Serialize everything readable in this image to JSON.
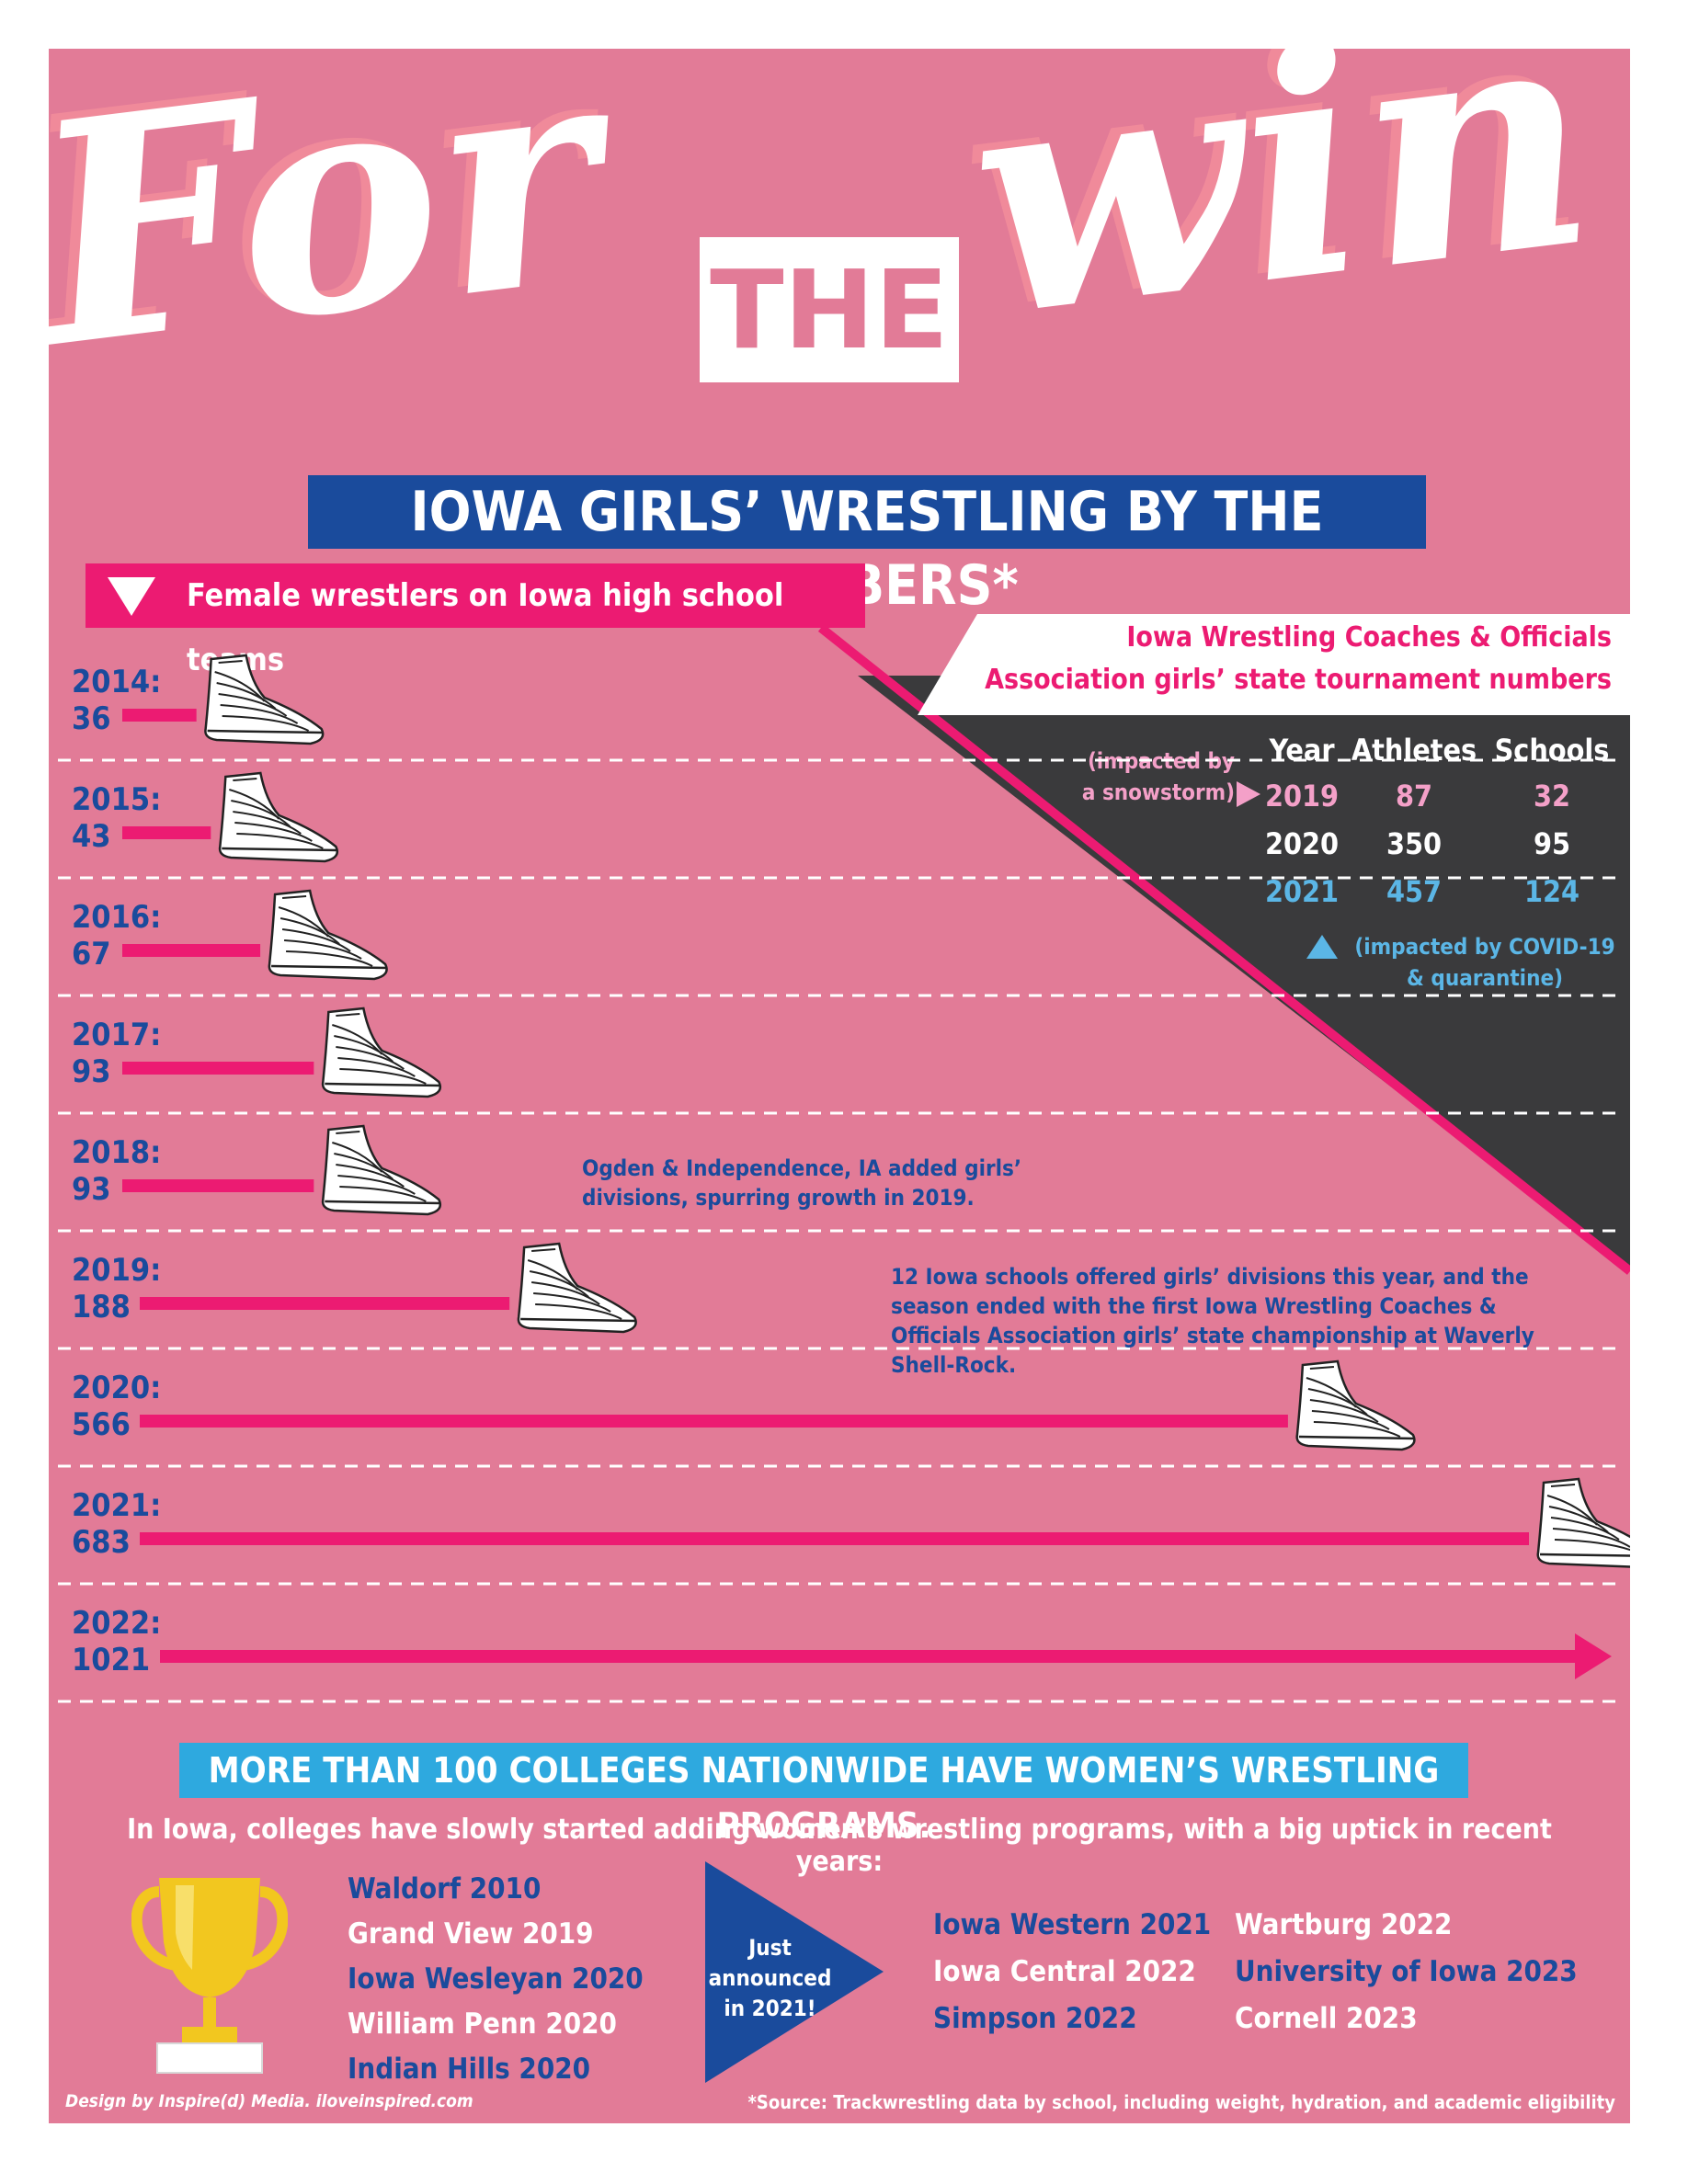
{
  "hero": {
    "word1": "For",
    "word2": "THE",
    "word3": "win"
  },
  "subtitle": "IOWA GIRLS’ WRESTLING BY THE NUMBERS*",
  "bar_header": "Female wrestlers on Iowa high school teams",
  "colors": {
    "background": "#e27b97",
    "pink": "#ec1b72",
    "navy": "#1a4b9c",
    "dark": "#3a3a3c",
    "light_blue": "#2ea9df",
    "white": "#ffffff"
  },
  "chart_data": {
    "type": "bar",
    "title": "Female wrestlers on Iowa high school teams",
    "categories": [
      "2014",
      "2015",
      "2016",
      "2017",
      "2018",
      "2019",
      "2020",
      "2021",
      "2022"
    ],
    "category_labels": [
      "2014:",
      "2015:",
      "2016:",
      "2017:",
      "2018:",
      "2019:",
      "2020:",
      "2021:",
      "2022:"
    ],
    "values": [
      36,
      43,
      67,
      93,
      93,
      188,
      566,
      683,
      1021
    ],
    "orientation": "horizontal",
    "annotations": [
      {
        "category": "2018",
        "text": "Ogden & Independence, IA added girls’ divisions, spurring growth in 2019."
      },
      {
        "category": "2019",
        "text": "12 Iowa schools offered girls’ divisions this year, and the season ended with the first Iowa Wrestling Coaches & Officials Association girls’ state championship at Waverly Shell-Rock."
      }
    ]
  },
  "tournament": {
    "title_line1": "Iowa Wrestling Coaches & Officials",
    "title_line2": "Association girls’ state tournament numbers",
    "headers": [
      "Year",
      "Athletes",
      "Schools"
    ],
    "rows": [
      {
        "year": "2019",
        "athletes": "87",
        "schools": "32"
      },
      {
        "year": "2020",
        "athletes": "350",
        "schools": "95"
      },
      {
        "year": "2021",
        "athletes": "457",
        "schools": "124"
      }
    ],
    "note_snow_line1": "(impacted by",
    "note_snow_line2": "a snowstorm)",
    "note_covid_line1": "(impacted by COVID-19",
    "note_covid_line2": "& quarantine)"
  },
  "colleges": {
    "banner": "MORE THAN 100 COLLEGES NATIONWIDE HAVE WOMEN’S WRESTLING PROGRAMS.",
    "intro": "In Iowa, colleges have slowly started adding women’s wrestling programs, with a big uptick in recent years:",
    "existing": [
      "Waldorf 2010",
      "Grand View 2019",
      "Iowa Wesleyan 2020",
      "William Penn 2020",
      "Indian Hills 2020"
    ],
    "announced_label": [
      "Just",
      "announced",
      "in 2021!"
    ],
    "announced_col1": [
      "Iowa Western 2021",
      "Iowa Central 2022",
      "Simpson 2022"
    ],
    "announced_col2": [
      "Wartburg 2022",
      "University of Iowa 2023",
      "Cornell 2023"
    ]
  },
  "footer": {
    "credit": "Design by Inspire(d) Media. iloveinspired.com",
    "source": "*Source: Trackwrestling data by school, including weight, hydration, and academic eligibility"
  }
}
